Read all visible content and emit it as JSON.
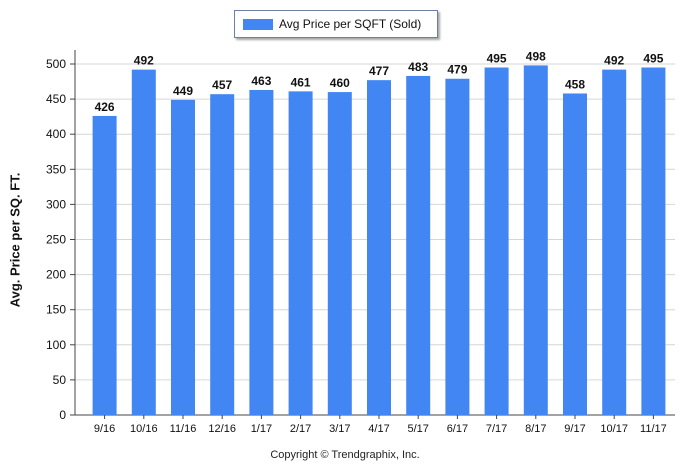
{
  "chart_data": {
    "type": "bar",
    "categories": [
      "9/16",
      "10/16",
      "11/16",
      "12/16",
      "1/17",
      "2/17",
      "3/17",
      "4/17",
      "5/17",
      "6/17",
      "7/17",
      "8/17",
      "9/17",
      "10/17",
      "11/17"
    ],
    "series": [
      {
        "name": "Avg Price per SQFT (Sold)",
        "values": [
          426,
          492,
          449,
          457,
          463,
          461,
          460,
          477,
          483,
          479,
          495,
          498,
          458,
          492,
          495
        ]
      }
    ],
    "xlabel": "",
    "ylabel": "Avg. Price per SQ. FT.",
    "ylim": [
      0,
      500
    ],
    "yticks": [
      0,
      50,
      100,
      150,
      200,
      250,
      300,
      350,
      400,
      450,
      500
    ],
    "grid": true,
    "legend_position": "top-center",
    "bar_color": "#4286f4",
    "data_labels": true
  },
  "legend": {
    "label": "Avg Price per SQFT (Sold)"
  },
  "footer": {
    "copyright": "Copyright © Trendgraphix, Inc."
  }
}
